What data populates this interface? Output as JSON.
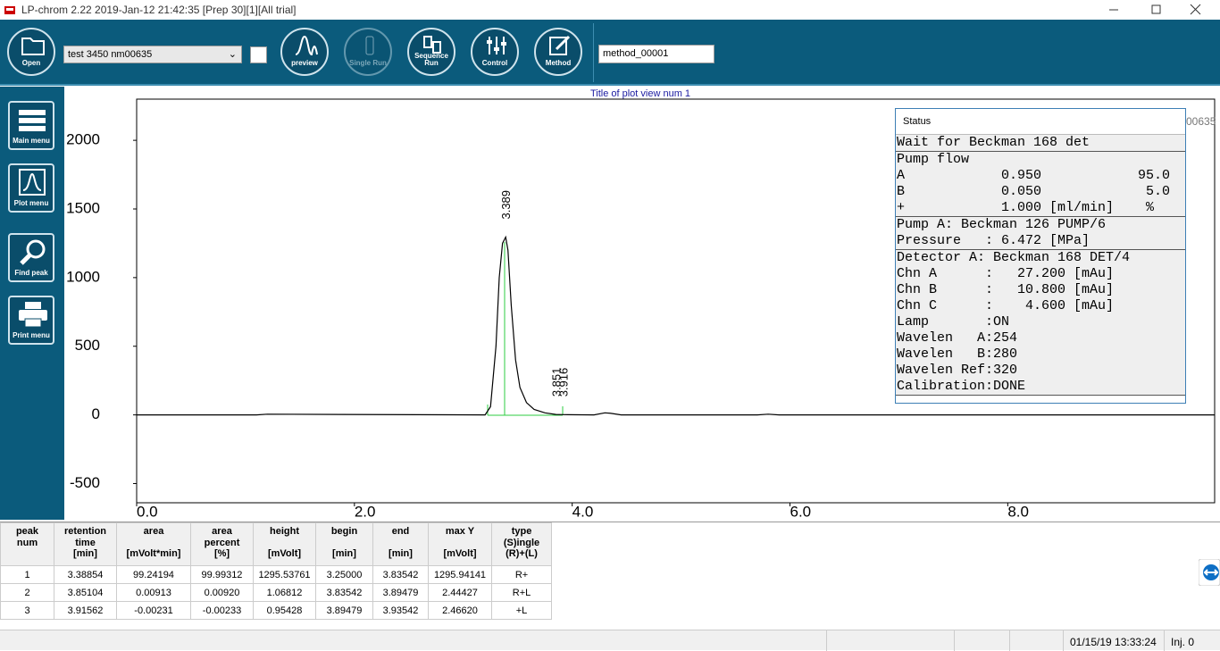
{
  "window": {
    "title": "LP-chrom 2.22 2019-Jan-12 21:42:35 [Prep 30][1][All trial]"
  },
  "toolbar": {
    "open": "Open",
    "file_select": "test 3450 nm00635",
    "preview": "preview",
    "single_run": "Single Run",
    "sequence_run": "Sequence Run",
    "control": "Control",
    "method": "Method",
    "method_input": "method_00001"
  },
  "sidebar": [
    "Main menu",
    "Plot menu",
    "Find peak",
    "Print menu"
  ],
  "chart_data": {
    "type": "line",
    "title": "Title of plot view num 1",
    "plot_label": "00635",
    "x": [
      0,
      1.1,
      1.2,
      3.2,
      3.25,
      3.3,
      3.33,
      3.36,
      3.389,
      3.41,
      3.44,
      3.48,
      3.52,
      3.58,
      3.65,
      3.75,
      3.85,
      3.916,
      4.2,
      4.3,
      4.35,
      4.45,
      5.7,
      5.8,
      5.9,
      8.0,
      9.9
    ],
    "values": [
      0,
      0,
      5,
      0,
      60,
      500,
      1000,
      1250,
      1295,
      1200,
      800,
      400,
      200,
      90,
      40,
      15,
      3,
      2,
      0,
      15,
      12,
      0,
      0,
      5,
      0,
      0,
      0
    ],
    "color": "#000000",
    "peak_labels": [
      3.389,
      3.851,
      3.916
    ],
    "xlim": [
      0,
      9.9
    ],
    "ylim": [
      -640,
      2300
    ],
    "xticks": [
      {
        "value": 0,
        "label": "0.0"
      },
      {
        "value": 2,
        "label": "2.0"
      },
      {
        "value": 4,
        "label": "4.0"
      },
      {
        "value": 6,
        "label": "6.0"
      },
      {
        "value": 8,
        "label": "8.0"
      }
    ],
    "yticks": [
      -500,
      0,
      500,
      1000,
      1500,
      2000
    ]
  },
  "status": {
    "title": "Status",
    "sections": [
      [
        "Wait for Beckman 168 det"
      ],
      [
        "Pump flow",
        "A            0.950            95.0",
        "B            0.050             5.0",
        "+            1.000 [ml/min]    %"
      ],
      [
        "Pump A: Beckman 126 PUMP/6",
        "Pressure   : 6.472 [MPa]"
      ],
      [
        "Detector A: Beckman 168 DET/4",
        "Chn A      :   27.200 [mAu]",
        "Chn B      :   10.800 [mAu]",
        "Chn C      :    4.600 [mAu]",
        "Lamp       :ON",
        "Wavelen   A:254",
        "Wavelen   B:280",
        "Wavelen Ref:320",
        "Calibration:DONE"
      ]
    ]
  },
  "table": {
    "headers": [
      "peak\nnum",
      "retention\ntime\n[min]",
      "area\n\n[mVolt*min]",
      "area\npercent\n[%]",
      "height\n\n[mVolt]",
      "begin\n\n[min]",
      "end\n\n[min]",
      "max Y\n\n[mVolt]",
      "type\n(S)ingle\n(R)+(L)"
    ],
    "rows": [
      [
        "1",
        "3.38854",
        "99.24194",
        "99.99312",
        "1295.53761",
        "3.25000",
        "3.83542",
        "1295.94141",
        "R+"
      ],
      [
        "2",
        "3.85104",
        "0.00913",
        "0.00920",
        "1.06812",
        "3.83542",
        "3.89479",
        "2.44427",
        "R+L"
      ],
      [
        "3",
        "3.91562",
        "-0.00231",
        "-0.00233",
        "0.95428",
        "3.89479",
        "3.93542",
        "2.46620",
        "+L"
      ]
    ]
  },
  "statusbar": {
    "datetime": "01/15/19 13:33:24",
    "injection": "Inj. 0"
  }
}
